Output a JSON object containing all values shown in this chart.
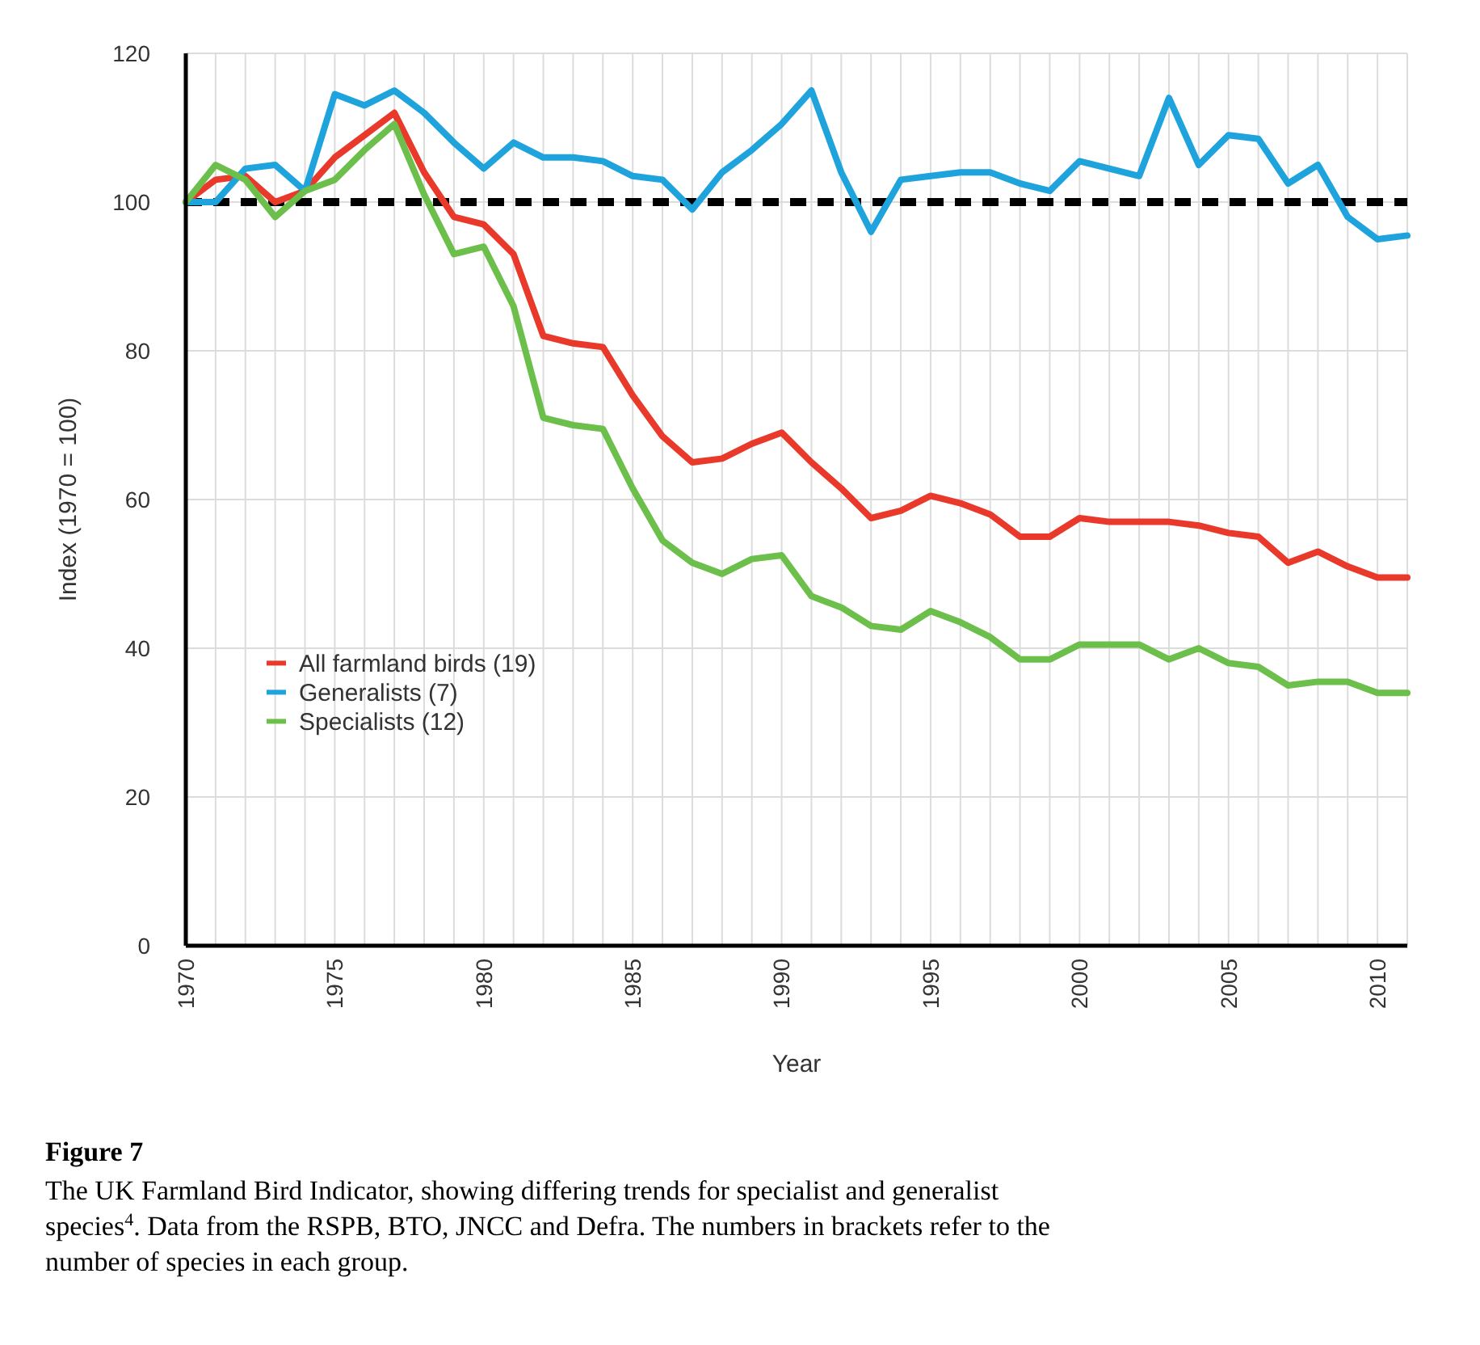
{
  "chart_data": {
    "type": "line",
    "xlabel": "Year",
    "ylabel": "Index (1970 = 100)",
    "x": [
      1970,
      1971,
      1972,
      1973,
      1974,
      1975,
      1976,
      1977,
      1978,
      1979,
      1980,
      1981,
      1982,
      1983,
      1984,
      1985,
      1986,
      1987,
      1988,
      1989,
      1990,
      1991,
      1992,
      1993,
      1994,
      1995,
      1996,
      1997,
      1998,
      1999,
      2000,
      2001,
      2002,
      2003,
      2004,
      2005,
      2006,
      2007,
      2008,
      2009,
      2010,
      2011
    ],
    "series": [
      {
        "name": "All farmland birds (19)",
        "color": "#e8392a",
        "values": [
          100,
          103,
          103.5,
          100,
          101.5,
          106,
          109,
          112,
          104,
          98,
          97,
          93,
          82,
          81,
          80.5,
          74,
          68.5,
          65,
          65.5,
          67.5,
          69,
          65,
          61.5,
          57.5,
          58.5,
          60.5,
          59.5,
          58,
          55,
          55,
          57.5,
          57,
          57,
          57,
          56.5,
          55.5,
          55,
          51.5,
          53,
          51,
          49.5,
          49.5
        ]
      },
      {
        "name": "Generalists (7)",
        "color": "#1fa3dc",
        "values": [
          100,
          100,
          104.5,
          105,
          101.5,
          114.5,
          113,
          115,
          112,
          108,
          104.5,
          108,
          106,
          106,
          105.5,
          103.5,
          103,
          99,
          104,
          107,
          110.5,
          115,
          104,
          96,
          103,
          103.5,
          104,
          104,
          102.5,
          101.5,
          105.5,
          104.5,
          103.5,
          114,
          105,
          109,
          108.5,
          102.5,
          105,
          98,
          95,
          95.5
        ]
      },
      {
        "name": "Specialists (12)",
        "color": "#6cbf4a",
        "values": [
          100,
          105,
          103,
          98,
          101.5,
          103,
          107,
          110.5,
          101,
          93,
          94,
          86,
          71,
          70,
          69.5,
          61.5,
          54.5,
          51.5,
          50,
          52,
          52.5,
          47,
          45.5,
          43,
          42.5,
          45,
          43.5,
          41.5,
          38.5,
          38.5,
          40.5,
          40.5,
          40.5,
          38.5,
          40,
          38,
          37.5,
          35,
          35.5,
          35.5,
          34,
          34
        ]
      }
    ],
    "xlim": [
      1970,
      2011
    ],
    "xticks": [
      1970,
      {
        "value": 1971,
        "label": null
      },
      {
        "value": 1972,
        "label": null
      },
      {
        "value": 1973,
        "label": null
      },
      {
        "value": 1974,
        "label": null
      },
      1975,
      {
        "value": 1976,
        "label": null
      },
      {
        "value": 1977,
        "label": null
      },
      {
        "value": 1978,
        "label": null
      },
      {
        "value": 1979,
        "label": null
      },
      1980,
      {
        "value": 1981,
        "label": null
      },
      {
        "value": 1982,
        "label": null
      },
      {
        "value": 1983,
        "label": null
      },
      {
        "value": 1984,
        "label": null
      },
      1985,
      {
        "value": 1986,
        "label": null
      },
      {
        "value": 1987,
        "label": null
      },
      {
        "value": 1988,
        "label": null
      },
      {
        "value": 1989,
        "label": null
      },
      1990,
      {
        "value": 1991,
        "label": null
      },
      {
        "value": 1992,
        "label": null
      },
      {
        "value": 1993,
        "label": null
      },
      {
        "value": 1994,
        "label": null
      },
      1995,
      {
        "value": 1996,
        "label": null
      },
      {
        "value": 1997,
        "label": null
      },
      {
        "value": 1998,
        "label": null
      },
      {
        "value": 1999,
        "label": null
      },
      2000,
      {
        "value": 2001,
        "label": null
      },
      {
        "value": 2002,
        "label": null
      },
      {
        "value": 2003,
        "label": null
      },
      {
        "value": 2004,
        "label": null
      },
      2005,
      {
        "value": 2006,
        "label": null
      },
      {
        "value": 2007,
        "label": null
      },
      {
        "value": 2008,
        "label": null
      },
      {
        "value": 2009,
        "label": null
      },
      2010,
      {
        "value": 2011,
        "label": null
      }
    ],
    "ylim": [
      0,
      120
    ],
    "yticks": [
      0,
      20,
      40,
      60,
      80,
      100,
      120
    ],
    "grid": true,
    "legend": "left",
    "marker": "none",
    "line_style": "solid",
    "ref_lines": [
      {
        "axis": "y",
        "value": 100,
        "color": "#000000",
        "line_style": "dashed"
      }
    ],
    "annotations": [
      "Figure 7",
      "The UK Farmland Bird Indicator, showing differing trends for specialist and generalist species$^{4}$. Data from the RSPB, BTO, JNCC and Defra. The numbers in brackets refer to the number of species in each group."
    ]
  }
}
